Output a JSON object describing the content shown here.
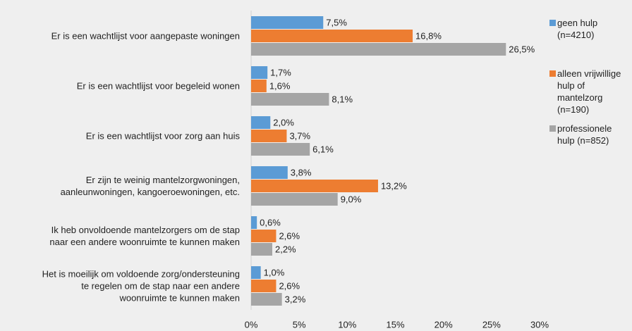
{
  "chart_data": {
    "type": "bar",
    "orientation": "horizontal",
    "categories": [
      "Er is een wachtlijst voor aangepaste woningen",
      "Er is een wachtlijst voor begeleid wonen",
      "Er is een wachtlijst voor zorg aan huis",
      "Er zijn te weinig mantelzorgwoningen,\naanleunwoningen, kangoeroewoningen, etc.",
      "Ik heb onvoldoende mantelzorgers om de stap\nnaar een andere woonruimte te kunnen maken",
      "Het is moeilijk om voldoende zorg/ondersteuning\nte regelen om de stap naar een andere\nwoonruimte te kunnen maken"
    ],
    "series": [
      {
        "name": "geen hulp (n=4210)",
        "color": "#5b9bd5",
        "values": [
          7.5,
          1.7,
          2.0,
          3.8,
          0.6,
          1.0
        ],
        "value_labels": [
          "7,5%",
          "1,7%",
          "2,0%",
          "3,8%",
          "0,6%",
          "1,0%"
        ]
      },
      {
        "name": "alleen vrijwillige hulp of mantelzorg (n=190)",
        "color": "#ed7d31",
        "values": [
          16.8,
          1.6,
          3.7,
          13.2,
          2.6,
          2.6
        ],
        "value_labels": [
          "16,8%",
          "1,6%",
          "3,7%",
          "13,2%",
          "2,6%",
          "2,6%"
        ]
      },
      {
        "name": "professionele hulp (n=852)",
        "color": "#a5a5a5",
        "values": [
          26.5,
          8.1,
          6.1,
          9.0,
          2.2,
          3.2
        ],
        "value_labels": [
          "26,5%",
          "8,1%",
          "6,1%",
          "9,0%",
          "2,2%",
          "3,2%"
        ]
      }
    ],
    "xlim": [
      0,
      30
    ],
    "xticks": [
      {
        "value": 0,
        "label": "0%"
      },
      {
        "value": 5,
        "label": "5%"
      },
      {
        "value": 10,
        "label": "10%"
      },
      {
        "value": 15,
        "label": "15%"
      },
      {
        "value": 20,
        "label": "20%"
      },
      {
        "value": 25,
        "label": "25%"
      },
      {
        "value": 30,
        "label": "30%"
      }
    ],
    "grid": false,
    "legend": "right"
  }
}
